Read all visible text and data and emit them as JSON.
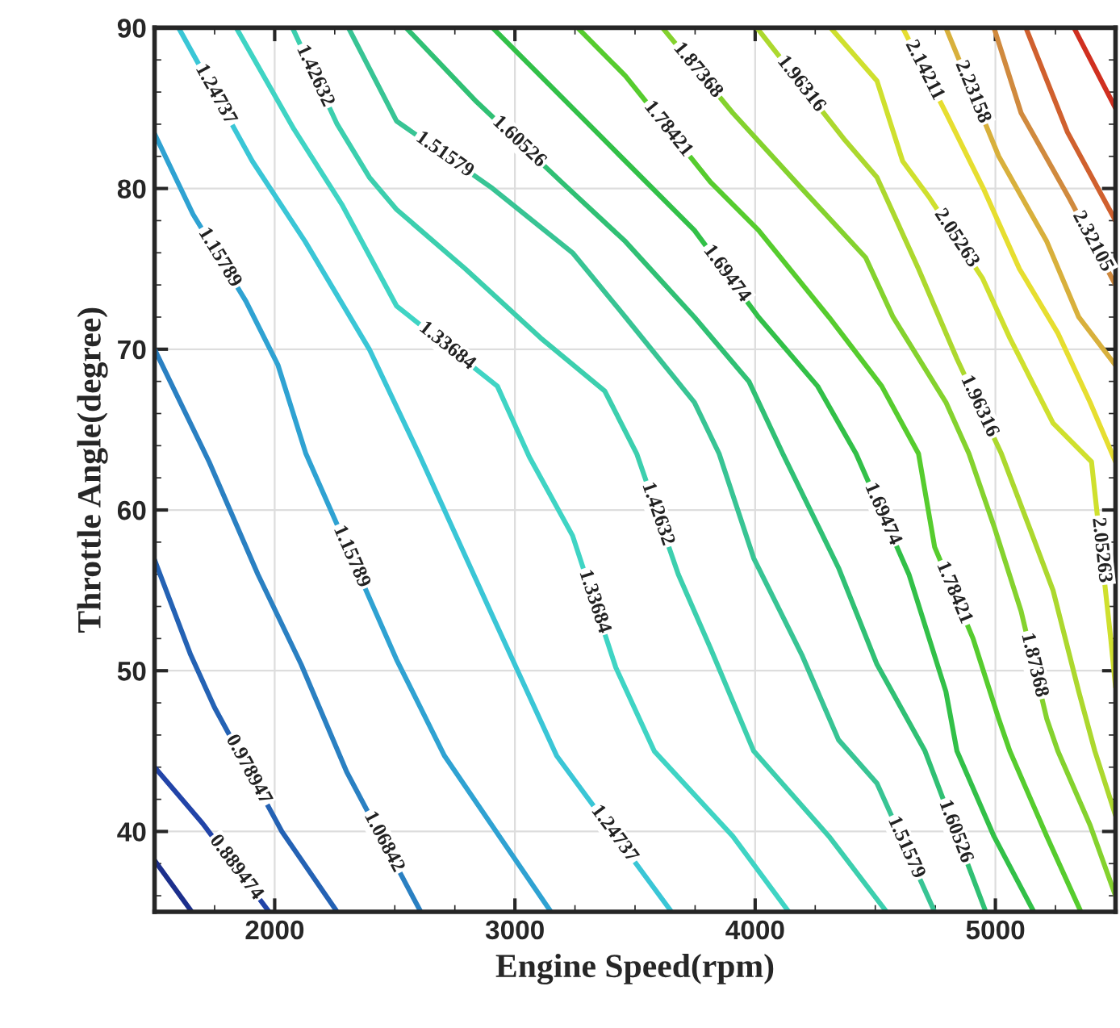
{
  "chart_data": {
    "type": "line",
    "xlabel": "Engine Speed(rpm)",
    "ylabel": "Throttle Angle(degree)",
    "xlim": [
      1500,
      5500
    ],
    "xticks": [
      2000,
      3000,
      4000,
      5000
    ],
    "ylim": [
      35,
      90
    ],
    "yticks": [
      40,
      50,
      60,
      70,
      80,
      90
    ],
    "grid": true,
    "legend": false,
    "marker": "none",
    "line_style": "solid",
    "series": [
      {
        "color": "#1c2f8c",
        "x": [
          1500,
          1655
        ],
        "values": [
          38.2,
          35
        ]
      },
      {
        "name": "0.889474",
        "color": "#2244a8",
        "x": [
          1500,
          1700,
          1977
        ],
        "values": [
          44,
          40.5,
          35
        ]
      },
      {
        "name": "0.978947",
        "color": "#2462b4",
        "x": [
          1500,
          1650,
          1750,
          2030,
          2260
        ],
        "values": [
          56.9,
          51,
          47.7,
          40,
          35
        ]
      },
      {
        "name": "1.06842",
        "color": "#2a80c2",
        "x": [
          1500,
          1727,
          1930,
          2110,
          2300,
          2608
        ],
        "values": [
          70,
          63,
          56,
          50.4,
          43.7,
          35
        ]
      },
      {
        "name": "1.15789",
        "color": "#2fa2d2",
        "x": [
          1500,
          1660,
          1880,
          2014,
          2130,
          2507,
          2707,
          3150
        ],
        "values": [
          83.4,
          78.4,
          73,
          69,
          63.5,
          50.7,
          44.7,
          35
        ]
      },
      {
        "name": "1.24737",
        "color": "#3ac6d6",
        "x": [
          1600,
          1907,
          2127,
          2394,
          2600,
          2907,
          3174,
          3652
        ],
        "values": [
          90,
          81.7,
          76.7,
          70,
          63.5,
          53.4,
          44.7,
          35
        ]
      },
      {
        "name": "1.33684",
        "color": "#3fd4c4",
        "x": [
          1840,
          2080,
          2280,
          2507,
          2927,
          3060,
          3240,
          3420,
          3580,
          3907,
          4140
        ],
        "values": [
          90,
          83.7,
          79,
          72.7,
          67.7,
          63.3,
          58.4,
          50.2,
          45,
          39.7,
          35
        ]
      },
      {
        "name": "1.42632",
        "color": "#3ccfae",
        "x": [
          2074,
          2260,
          2394,
          2507,
          2794,
          3107,
          3374,
          3507,
          3680,
          3814,
          3994,
          4307,
          4547
        ],
        "values": [
          90,
          84,
          80.7,
          78.7,
          75,
          70.7,
          67.4,
          63.5,
          56,
          51.4,
          45,
          39.7,
          35
        ]
      },
      {
        "name": "1.51579",
        "color": "#38c494",
        "x": [
          2307,
          2507,
          2907,
          3240,
          3460,
          3747,
          3850,
          3994,
          4194,
          4347,
          4507,
          4747
        ],
        "values": [
          90,
          84.2,
          80,
          76,
          72,
          66.7,
          63.5,
          57,
          51,
          45.7,
          43,
          35
        ]
      },
      {
        "name": "1.60526",
        "color": "#30c074",
        "x": [
          2547,
          2840,
          3194,
          3460,
          3747,
          3974,
          4115,
          4347,
          4507,
          4707,
          4960
        ],
        "values": [
          90,
          85.4,
          80.4,
          76.7,
          72,
          68,
          63.5,
          56.4,
          50.4,
          45,
          35
        ]
      },
      {
        "name": "1.69474",
        "color": "#32c048",
        "x": [
          2907,
          3060,
          3347,
          3460,
          3747,
          4014,
          4260,
          4420,
          4640,
          4794,
          4840,
          4994,
          5160
        ],
        "values": [
          90,
          87.7,
          83.4,
          81.7,
          77.4,
          72,
          67.7,
          63.5,
          56,
          48.7,
          45,
          39.7,
          35
        ]
      },
      {
        "name": "1.78421",
        "color": "#56cc2e",
        "x": [
          3261,
          3460,
          3814,
          4014,
          4307,
          4527,
          4680,
          4747,
          4907,
          5014,
          5060,
          5214,
          5356
        ],
        "values": [
          90,
          87,
          80.4,
          77.4,
          72,
          67.7,
          63.5,
          57.7,
          52,
          47,
          45,
          39.7,
          35
        ]
      },
      {
        "name": "1.87368",
        "color": "#84d22e",
        "x": [
          3614,
          3907,
          4194,
          4460,
          4574,
          4794,
          4890,
          4994,
          5107,
          5214,
          5260,
          5394,
          5500
        ],
        "values": [
          90,
          84.7,
          80,
          75.7,
          72,
          66.7,
          63.5,
          59,
          53.7,
          47,
          45,
          40.4,
          36
        ]
      },
      {
        "name": "1.96316",
        "color": "#acd82e",
        "x": [
          4007,
          4374,
          4507,
          4680,
          4840,
          5025,
          5147,
          5240,
          5347,
          5414,
          5500
        ],
        "values": [
          90,
          83,
          80.7,
          75,
          69.4,
          63.5,
          58.7,
          55,
          48.7,
          45,
          41
        ]
      },
      {
        "name": "2.05263",
        "color": "#cfe02e",
        "x": [
          4314,
          4507,
          4614,
          4727,
          4947,
          5060,
          5240,
          5400,
          5480,
          5500
        ],
        "values": [
          90,
          86.7,
          81.7,
          79.4,
          74.4,
          70.7,
          65.4,
          63,
          52,
          49
        ]
      },
      {
        "name": "2.14211",
        "color": "#e6de30",
        "x": [
          4614,
          4794,
          4950,
          5100,
          5260,
          5394,
          5500
        ],
        "values": [
          90,
          84.7,
          80,
          75,
          71,
          66.7,
          63
        ]
      },
      {
        "name": "2.23158",
        "color": "#d8b03c",
        "x": [
          4794,
          5014,
          5214,
          5347,
          5500
        ],
        "values": [
          90,
          82,
          76.7,
          72,
          69
        ]
      },
      {
        "name": "2.32105",
        "color": "#d08a3e",
        "x": [
          4994,
          5107,
          5307,
          5500
        ],
        "values": [
          90,
          84.7,
          79.4,
          74
        ]
      },
      {
        "color": "#d0602e",
        "x": [
          5127,
          5300,
          5500
        ],
        "values": [
          90,
          83.5,
          78
        ]
      },
      {
        "color": "#d03020",
        "x": [
          5327,
          5500
        ],
        "values": [
          90,
          85
        ]
      }
    ]
  }
}
